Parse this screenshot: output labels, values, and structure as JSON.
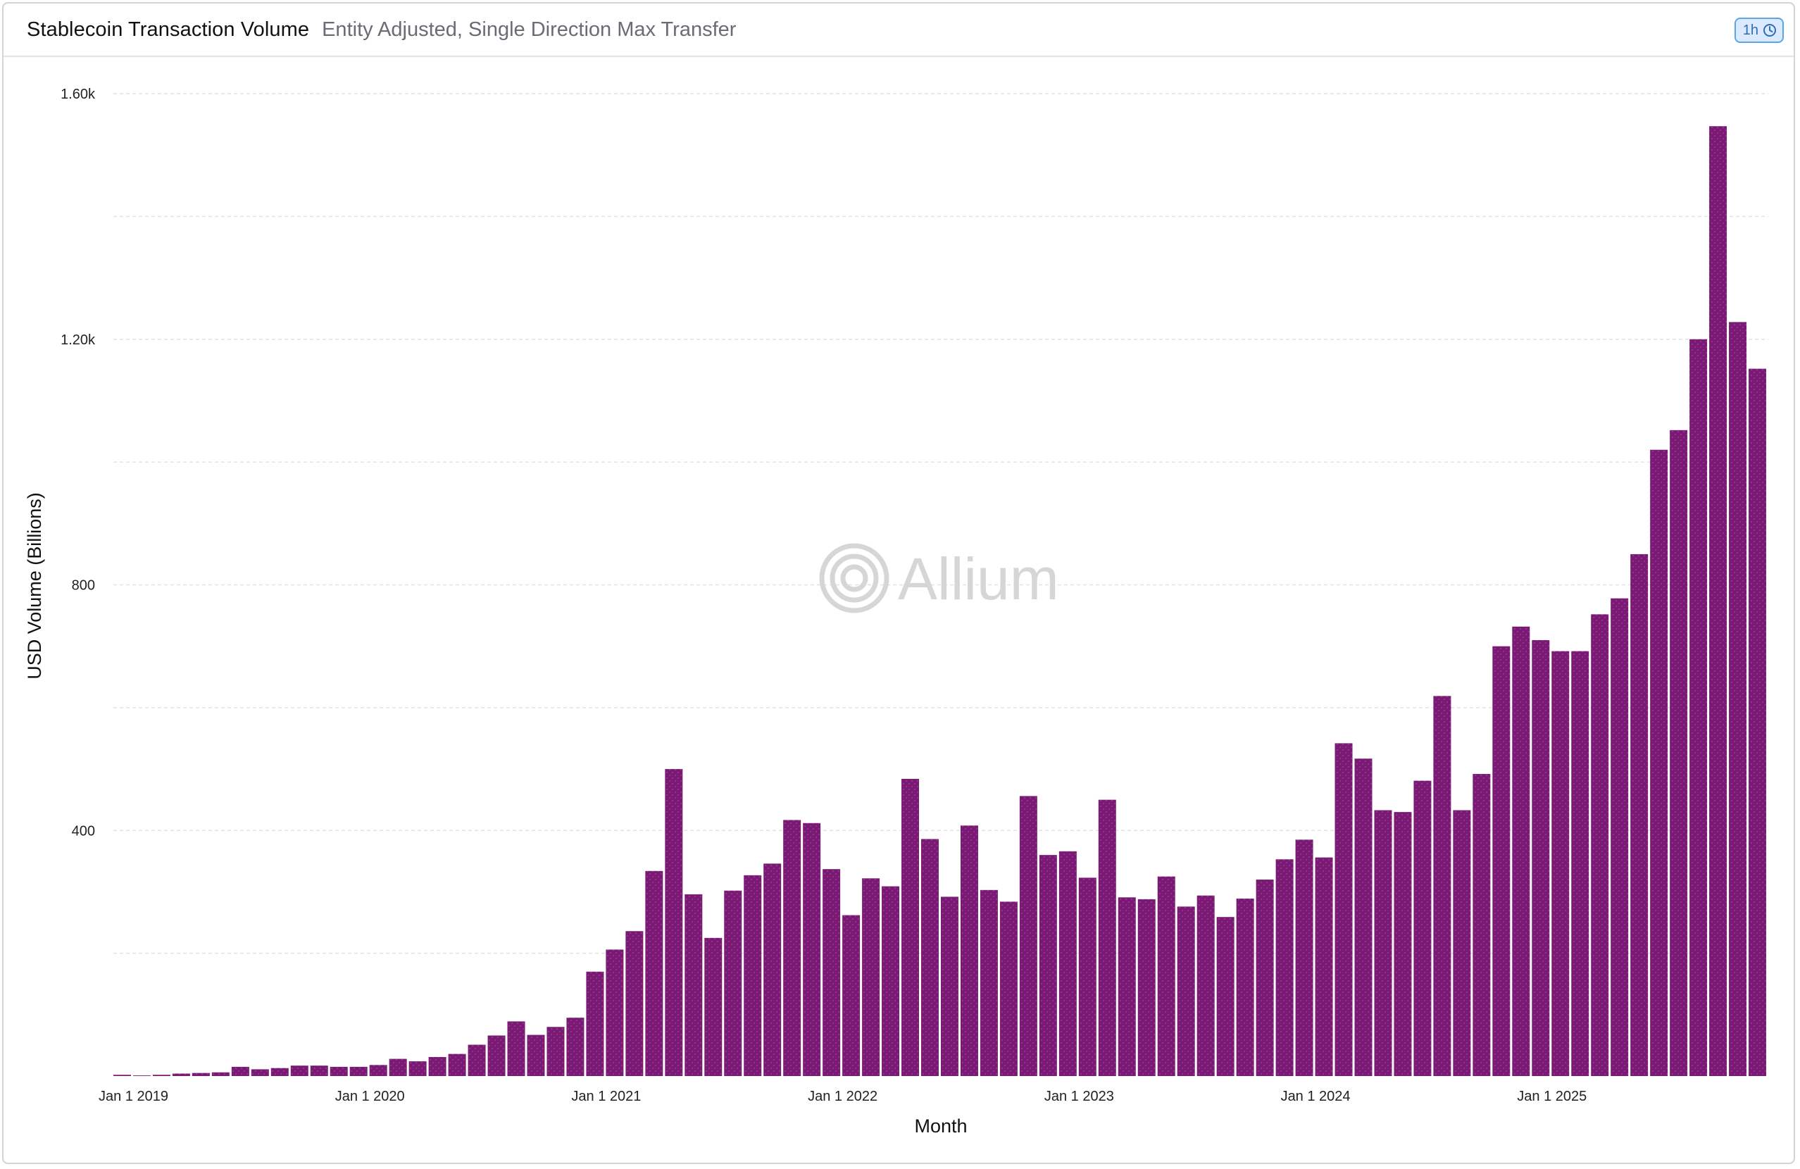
{
  "header": {
    "title": "Stablecoin Transaction Volume",
    "subtitle": "Entity Adjusted, Single Direction Max Transfer",
    "refresh_label": "1h",
    "refresh_icon": "clock-icon"
  },
  "watermark": {
    "text": "Allium",
    "icon": "allium-logo-icon"
  },
  "colors": {
    "bar": "#7b1a74",
    "bar_dot": "#a0479a",
    "grid": "#e2e2e6"
  },
  "chart_data": {
    "type": "bar",
    "xlabel": "Month",
    "ylabel": "USD Volume (Billions)",
    "ylim": [
      0,
      1600
    ],
    "y_ticks": [
      {
        "value": 400,
        "label": "400"
      },
      {
        "value": 800,
        "label": "800"
      },
      {
        "value": 1200,
        "label": "1.20k"
      },
      {
        "value": 1600,
        "label": "1.60k"
      }
    ],
    "grid_values": [
      200,
      400,
      600,
      800,
      1000,
      1200,
      1400,
      1600
    ],
    "x_ticks": [
      {
        "index": 0,
        "label": "Jan 1 2019"
      },
      {
        "index": 12,
        "label": "Jan 1 2020"
      },
      {
        "index": 24,
        "label": "Jan 1 2021"
      },
      {
        "index": 36,
        "label": "Jan 1 2022"
      },
      {
        "index": 48,
        "label": "Jan 1 2023"
      },
      {
        "index": 60,
        "label": "Jan 1 2024"
      },
      {
        "index": 72,
        "label": "Jan 1 2025"
      }
    ],
    "grid": true,
    "legend": "none",
    "start_month": "2019-01",
    "categories": [
      "2019-01",
      "2019-02",
      "2019-03",
      "2019-04",
      "2019-05",
      "2019-06",
      "2019-07",
      "2019-08",
      "2019-09",
      "2019-10",
      "2019-11",
      "2019-12",
      "2020-01",
      "2020-02",
      "2020-03",
      "2020-04",
      "2020-05",
      "2020-06",
      "2020-07",
      "2020-08",
      "2020-09",
      "2020-10",
      "2020-11",
      "2020-12",
      "2021-01",
      "2021-02",
      "2021-03",
      "2021-04",
      "2021-05",
      "2021-06",
      "2021-07",
      "2021-08",
      "2021-09",
      "2021-10",
      "2021-11",
      "2021-12",
      "2022-01",
      "2022-02",
      "2022-03",
      "2022-04",
      "2022-05",
      "2022-06",
      "2022-07",
      "2022-08",
      "2022-09",
      "2022-10",
      "2022-11",
      "2022-12",
      "2023-01",
      "2023-02",
      "2023-03",
      "2023-04",
      "2023-05",
      "2023-06",
      "2023-07",
      "2023-08",
      "2023-09",
      "2023-10",
      "2023-11",
      "2023-12",
      "2024-01",
      "2024-02",
      "2024-03",
      "2024-04",
      "2024-05",
      "2024-06",
      "2024-07",
      "2024-08",
      "2024-09",
      "2024-10",
      "2024-11",
      "2024-12",
      "2025-01",
      "2025-02",
      "2025-03",
      "2025-04",
      "2025-05",
      "2025-06",
      "2025-07",
      "2025-08",
      "2025-09",
      "2025-10",
      "2025-11",
      "2025-12"
    ],
    "values": [
      2,
      1,
      2,
      4,
      5,
      6,
      15,
      11,
      13,
      17,
      17,
      15,
      15,
      18,
      28,
      24,
      31,
      36,
      51,
      66,
      89,
      67,
      80,
      95,
      170,
      206,
      236,
      334,
      500,
      296,
      225,
      302,
      327,
      346,
      417,
      412,
      337,
      262,
      322,
      309,
      484,
      386,
      292,
      408,
      303,
      284,
      456,
      360,
      366,
      323,
      450,
      291,
      288,
      325,
      276,
      294,
      259,
      289,
      320,
      353,
      385,
      356,
      542,
      517,
      433,
      430,
      481,
      619,
      433,
      492,
      700,
      732,
      710,
      692,
      692,
      752,
      778,
      850,
      1020,
      1052,
      1200,
      1547,
      1228,
      1152
    ]
  }
}
